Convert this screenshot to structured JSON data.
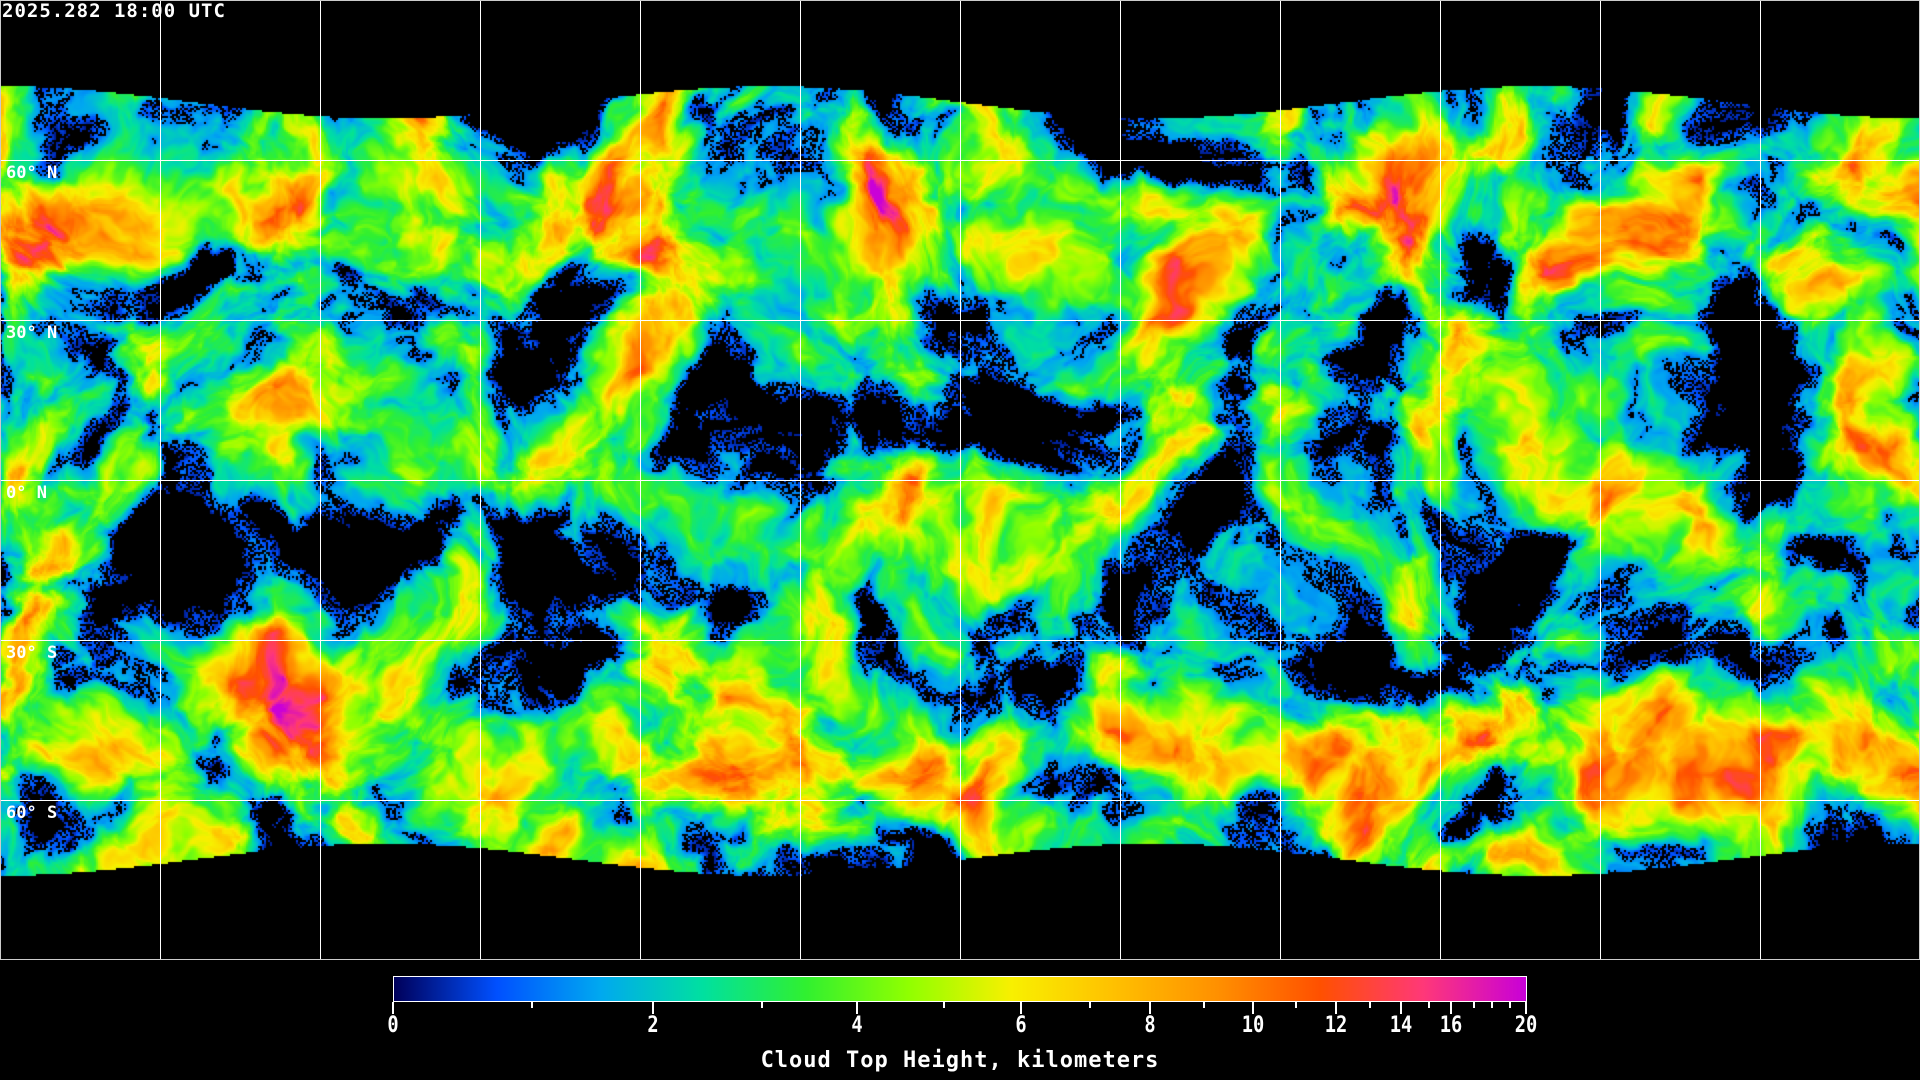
{
  "timestamp": "2025.282 18:00 UTC",
  "map": {
    "projection": "equirectangular",
    "gridline_color": "#ffffff",
    "latitude_labels": [
      "60° N",
      "30° N",
      "0° N",
      "30° S",
      "60° S"
    ],
    "no_data_color": "#000000"
  },
  "colorbar": {
    "title": "Cloud Top Height, kilometers",
    "min": 0,
    "max": 20,
    "major_ticks": [
      "0",
      "2",
      "4",
      "6",
      "8",
      "10",
      "12",
      "14",
      "16",
      "20"
    ],
    "minor_ticks": [
      1,
      3,
      5,
      7,
      9,
      11,
      13,
      15,
      17,
      18,
      19
    ],
    "colors": [
      "#00005a",
      "#0050ff",
      "#00a8f0",
      "#00e0a0",
      "#30f030",
      "#90ff00",
      "#f8f000",
      "#ffc000",
      "#ff9000",
      "#ff5000",
      "#ff3878",
      "#c800d8"
    ]
  }
}
